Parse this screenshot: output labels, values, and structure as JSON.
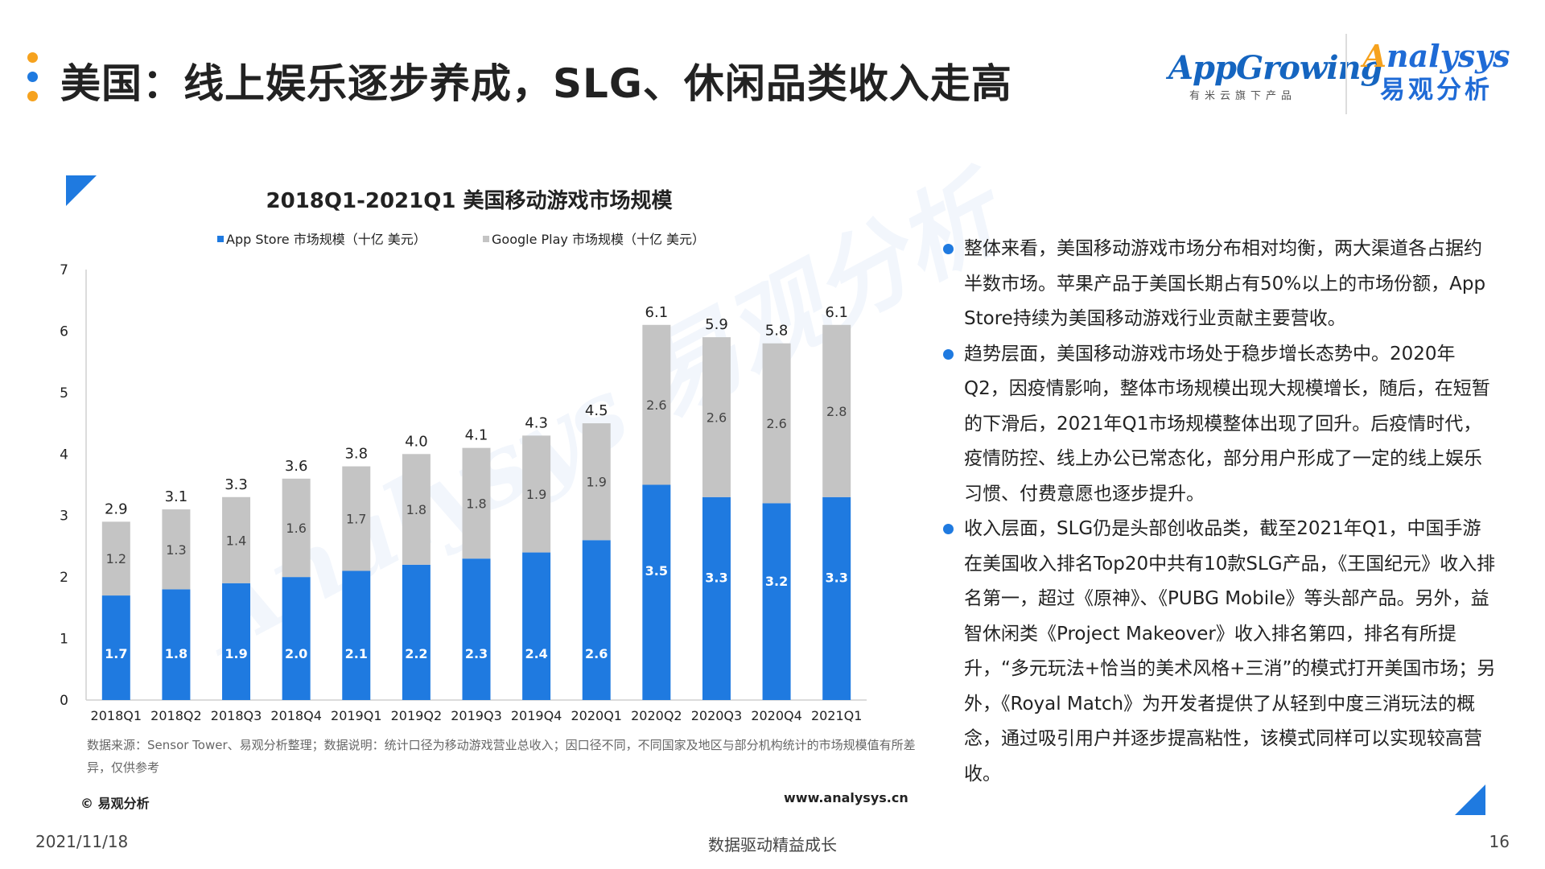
{
  "header": {
    "title": "美国：线上娱乐逐步养成，SLG、休闲品类收入走高",
    "bullet_colors": [
      "#f6a21e",
      "#1f7ae0",
      "#f6a21e"
    ]
  },
  "logos": {
    "appgrowing": {
      "name": "AppGrowing",
      "subtitle": "有米云旗下产品"
    },
    "analysys": {
      "name_prefix": "A",
      "name_rest": "nalysys",
      "chinese": "易观分析"
    }
  },
  "watermark": "Analysys 易观分析",
  "chart_data": {
    "type": "bar",
    "stacked": true,
    "title": "2018Q1-2021Q1 美国移动游戏市场规模",
    "categories": [
      "2018Q1",
      "2018Q2",
      "2018Q3",
      "2018Q4",
      "2019Q1",
      "2019Q2",
      "2019Q3",
      "2019Q4",
      "2020Q1",
      "2020Q2",
      "2020Q3",
      "2020Q4",
      "2021Q1"
    ],
    "series": [
      {
        "name": "App Store 市场规模（十亿 美元）",
        "color": "#1f7ae0",
        "values": [
          1.7,
          1.8,
          1.9,
          2.0,
          2.1,
          2.2,
          2.3,
          2.4,
          2.6,
          3.5,
          3.3,
          3.2,
          3.3
        ],
        "labels": [
          "1.7",
          "1.8",
          "1.9",
          "2.0",
          "2.1",
          "2.2",
          "2.3",
          "2.4",
          "2.6",
          "3.5",
          "3.3",
          "3.2",
          "3.3"
        ]
      },
      {
        "name": "Google Play 市场规模（十亿 美元）",
        "color": "#c4c4c4",
        "values": [
          1.2,
          1.3,
          1.4,
          1.6,
          1.7,
          1.8,
          1.8,
          1.9,
          1.9,
          2.6,
          2.6,
          2.6,
          2.8
        ],
        "labels": [
          "1.2",
          "1.3",
          "1.4",
          "1.6",
          "1.7",
          "1.8",
          "1.8",
          "1.9",
          "1.9",
          "2.6",
          "2.6",
          "2.6",
          "2.8"
        ]
      }
    ],
    "totals": [
      2.9,
      3.1,
      3.3,
      3.6,
      3.8,
      4.0,
      4.1,
      4.3,
      4.5,
      6.1,
      5.9,
      5.8,
      6.1
    ],
    "total_labels": [
      "2.9",
      "3.1",
      "3.3",
      "3.6",
      "3.8",
      "4.0",
      "4.1",
      "4.3",
      "4.5",
      "6.1",
      "5.9",
      "5.8",
      "6.1"
    ],
    "ylim": [
      0,
      7
    ],
    "yticks": [
      "0",
      "1",
      "2",
      "3",
      "4",
      "5",
      "6",
      "7"
    ],
    "grid": false,
    "legend_position": "top"
  },
  "chart_note": "数据来源：Sensor Tower、易观分析整理；数据说明：统计口径为移动游戏营业总收入；因口径不同，不同国家及地区与部分机构统计的市场规模值有所差异，仅供参考",
  "copyright": "© 易观分析",
  "website": "www.analysys.cn",
  "bullets": [
    "整体来看，美国移动游戏市场分布相对均衡，两大渠道各占据约半数市场。苹果产品于美国长期占有50%以上的市场份额，App Store持续为美国移动游戏行业贡献主要营收。",
    "趋势层面，美国移动游戏市场处于稳步增长态势中。2020年Q2，因疫情影响，整体市场规模出现大规模增长，随后，在短暂的下滑后，2021年Q1市场规模整体出现了回升。后疫情时代，疫情防控、线上办公已常态化，部分用户形成了一定的线上娱乐习惯、付费意愿也逐步提升。",
    "收入层面，SLG仍是头部创收品类，截至2021年Q1，中国手游在美国收入排名Top20中共有10款SLG产品，《王国纪元》收入排名第一，超过《原神》、《PUBG Mobile》等头部产品。另外，益智休闲类《Project Makeover》收入排名第四，排名有所提升，“多元玩法+恰当的美术风格+三消”的模式打开美国市场；另外，《Royal Match》为开发者提供了从轻到中度三消玩法的概念，通过吸引用户并逐步提高粘性，该模式同样可以实现较高营收。"
  ],
  "footer": {
    "date": "2021/11/18",
    "slogan": "数据驱动精益成长",
    "page": "16"
  }
}
